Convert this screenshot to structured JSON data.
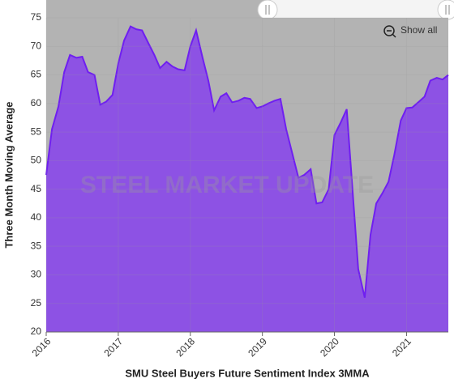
{
  "chart_data": {
    "type": "area",
    "x_axis_label": "SMU Steel Buyers Future Sentiment Index 3MMA",
    "y_axis_label": "Three Month Moving Average",
    "watermark": "STEEL MARKET UPDATE",
    "button": "Show all",
    "x": [
      2016,
      2016.08,
      2016.17,
      2016.25,
      2016.33,
      2016.42,
      2016.5,
      2016.58,
      2016.67,
      2016.75,
      2016.83,
      2016.92,
      2017,
      2017.08,
      2017.17,
      2017.25,
      2017.33,
      2017.42,
      2017.5,
      2017.58,
      2017.67,
      2017.75,
      2017.83,
      2017.92,
      2018,
      2018.08,
      2018.17,
      2018.25,
      2018.33,
      2018.42,
      2018.5,
      2018.58,
      2018.67,
      2018.75,
      2018.83,
      2018.92,
      2019,
      2019.08,
      2019.17,
      2019.25,
      2019.33,
      2019.42,
      2019.5,
      2019.58,
      2019.67,
      2019.75,
      2019.83,
      2019.92,
      2020,
      2020.08,
      2020.17,
      2020.25,
      2020.33,
      2020.42,
      2020.5,
      2020.58,
      2020.67,
      2020.75,
      2020.83,
      2020.92,
      2021,
      2021.08,
      2021.17,
      2021.25,
      2021.33,
      2021.42,
      2021.5,
      2021.58
    ],
    "series": [
      {
        "name": "SMU Steel Buyers Future Sentiment Index 3MMA",
        "color": "#8d52e4",
        "line_color": "#6f1ff0",
        "values": [
          47.5,
          55.5,
          59.5,
          65.5,
          68.5,
          68,
          68.2,
          65.5,
          65,
          59.8,
          60.3,
          61.5,
          67,
          71,
          73.5,
          73,
          72.8,
          70.5,
          68.5,
          66.2,
          67.3,
          66.5,
          66,
          65.8,
          70,
          72.8,
          68,
          64,
          58.8,
          61.2,
          61.8,
          60.2,
          60.5,
          61,
          60.8,
          59.2,
          59.5,
          60,
          60.5,
          60.8,
          55.5,
          51,
          47,
          47.5,
          48.5,
          42.5,
          42.7,
          45,
          54.5,
          56.5,
          59,
          45,
          31,
          26,
          37,
          42.5,
          44.4,
          46.3,
          51,
          57,
          59.2,
          59.3,
          60.3,
          61.2,
          64,
          64.5,
          64.2,
          65
        ]
      }
    ],
    "xlim": [
      2016,
      2021.58
    ],
    "xticks": [
      2016,
      2017,
      2018,
      2019,
      2020,
      2021
    ],
    "ylim": [
      20,
      75
    ],
    "yticks": [
      20,
      25,
      30,
      35,
      40,
      45,
      50,
      55,
      60,
      65,
      70,
      75
    ],
    "grid": true,
    "plot_background": "#b3b3b3"
  }
}
